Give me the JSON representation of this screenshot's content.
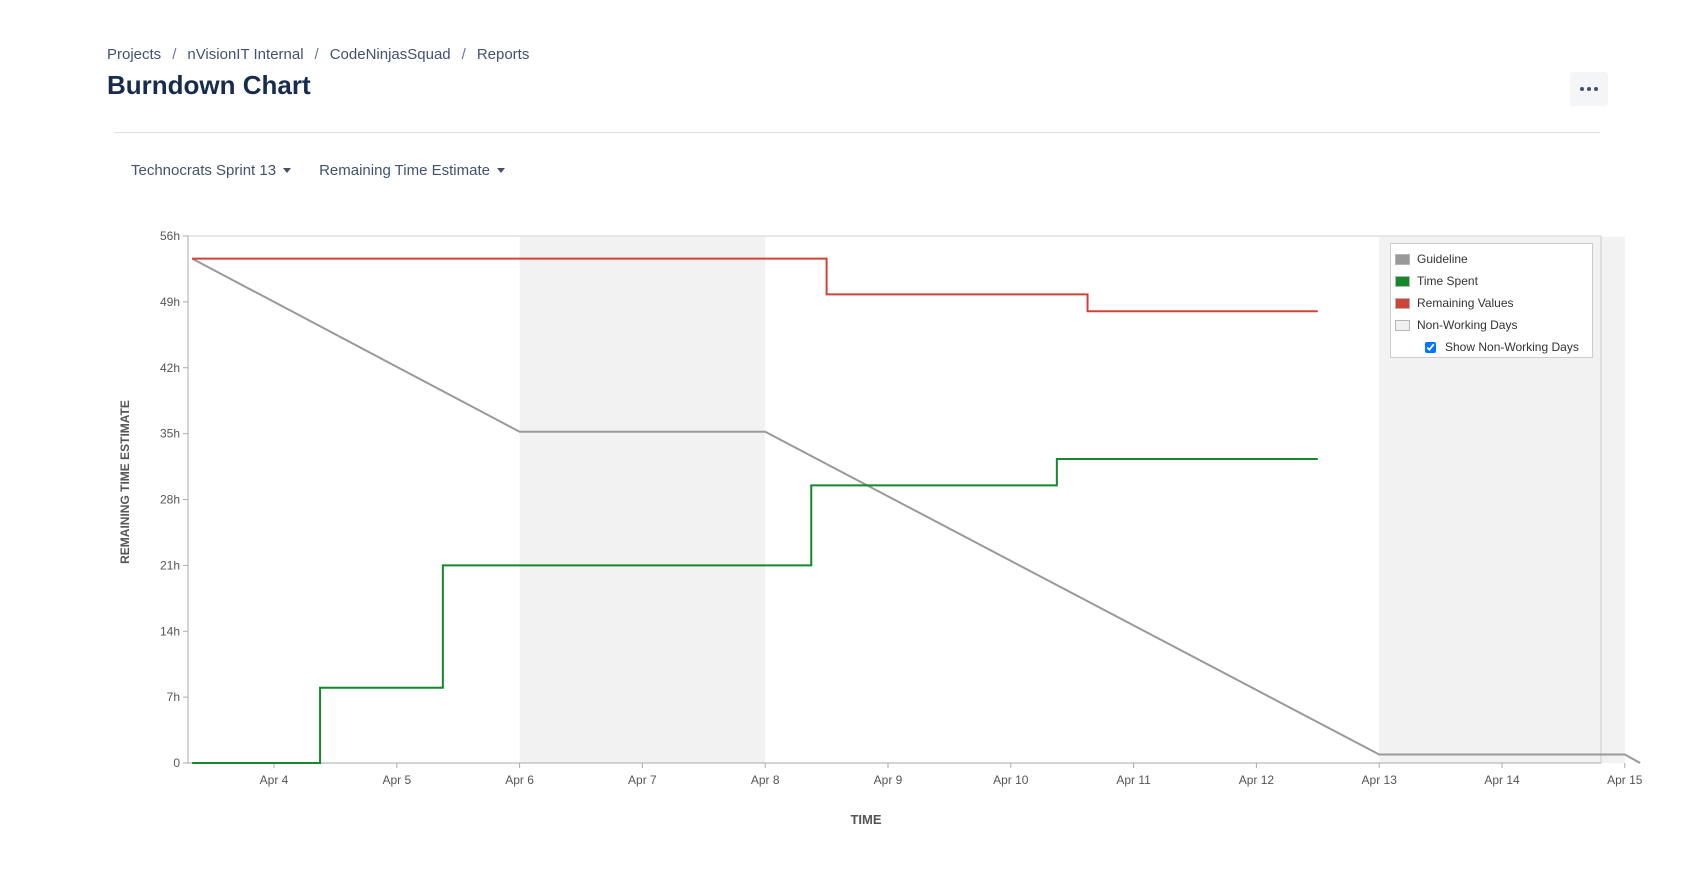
{
  "breadcrumb": {
    "items": [
      {
        "label": "Projects"
      },
      {
        "label": "nVisionIT Internal"
      },
      {
        "label": "CodeNinjasSquad"
      },
      {
        "label": "Reports"
      }
    ],
    "separator": "/"
  },
  "page_title": "Burndown Chart",
  "more_icon": "more-horizontal-icon",
  "controls": {
    "sprint_select": "Technocrats Sprint 13",
    "estimate_select": "Remaining Time Estimate"
  },
  "legend": {
    "items": [
      {
        "label": "Guideline",
        "color": "#999999"
      },
      {
        "label": "Time Spent",
        "color": "#14892c"
      },
      {
        "label": "Remaining Values",
        "color": "#d04437"
      },
      {
        "label": "Non-Working Days",
        "color": "#f0f0f0"
      }
    ],
    "show_non_working_days_label": "Show Non-Working Days",
    "show_non_working_days_checked": true
  },
  "chart_data": {
    "type": "line",
    "xlabel": "TIME",
    "ylabel": "REMAINING TIME ESTIMATE",
    "x_range": [
      "Apr 3 ~08:00",
      "Apr 15 ~03:00"
    ],
    "y_range_hours": [
      0,
      56
    ],
    "y_ticks": [
      0,
      7,
      14,
      21,
      28,
      35,
      42,
      49,
      56
    ],
    "y_tick_labels": [
      "0",
      "7h",
      "14h",
      "21h",
      "28h",
      "35h",
      "42h",
      "49h",
      "56h"
    ],
    "x_ticks": [
      "Apr 4",
      "Apr 5",
      "Apr 6",
      "Apr 7",
      "Apr 8",
      "Apr 9",
      "Apr 10",
      "Apr 11",
      "Apr 12",
      "Apr 13",
      "Apr 14",
      "Apr 15"
    ],
    "grid": false,
    "legend_position": "top-right",
    "non_working_days": [
      [
        "Apr 6",
        "Apr 8"
      ],
      [
        "Apr 13",
        "Apr 15"
      ]
    ],
    "series": [
      {
        "name": "Guideline",
        "color": "#999999",
        "points": [
          [
            "Apr 3 08:00",
            53.6
          ],
          [
            "Apr 6 00:00",
            35.2
          ],
          [
            "Apr 8 00:00",
            35.2
          ],
          [
            "Apr 13 00:00",
            0.9
          ],
          [
            "Apr 15 00:00",
            0.9
          ],
          [
            "Apr 15 03:00",
            0
          ]
        ]
      },
      {
        "name": "Time Spent",
        "color": "#14892c",
        "step": true,
        "points": [
          [
            "Apr 3 08:00",
            0
          ],
          [
            "Apr 4 09:00",
            8
          ],
          [
            "Apr 5 09:00",
            21
          ],
          [
            "Apr 8 09:00",
            29.5
          ],
          [
            "Apr 10 09:00",
            32.3
          ],
          [
            "Apr 12 12:00",
            32.3
          ]
        ]
      },
      {
        "name": "Remaining Values",
        "color": "#d04437",
        "step": true,
        "points": [
          [
            "Apr 3 08:00",
            53.6
          ],
          [
            "Apr 8 12:00",
            49.8
          ],
          [
            "Apr 10 15:00",
            48
          ],
          [
            "Apr 12 12:00",
            48
          ]
        ]
      }
    ]
  }
}
